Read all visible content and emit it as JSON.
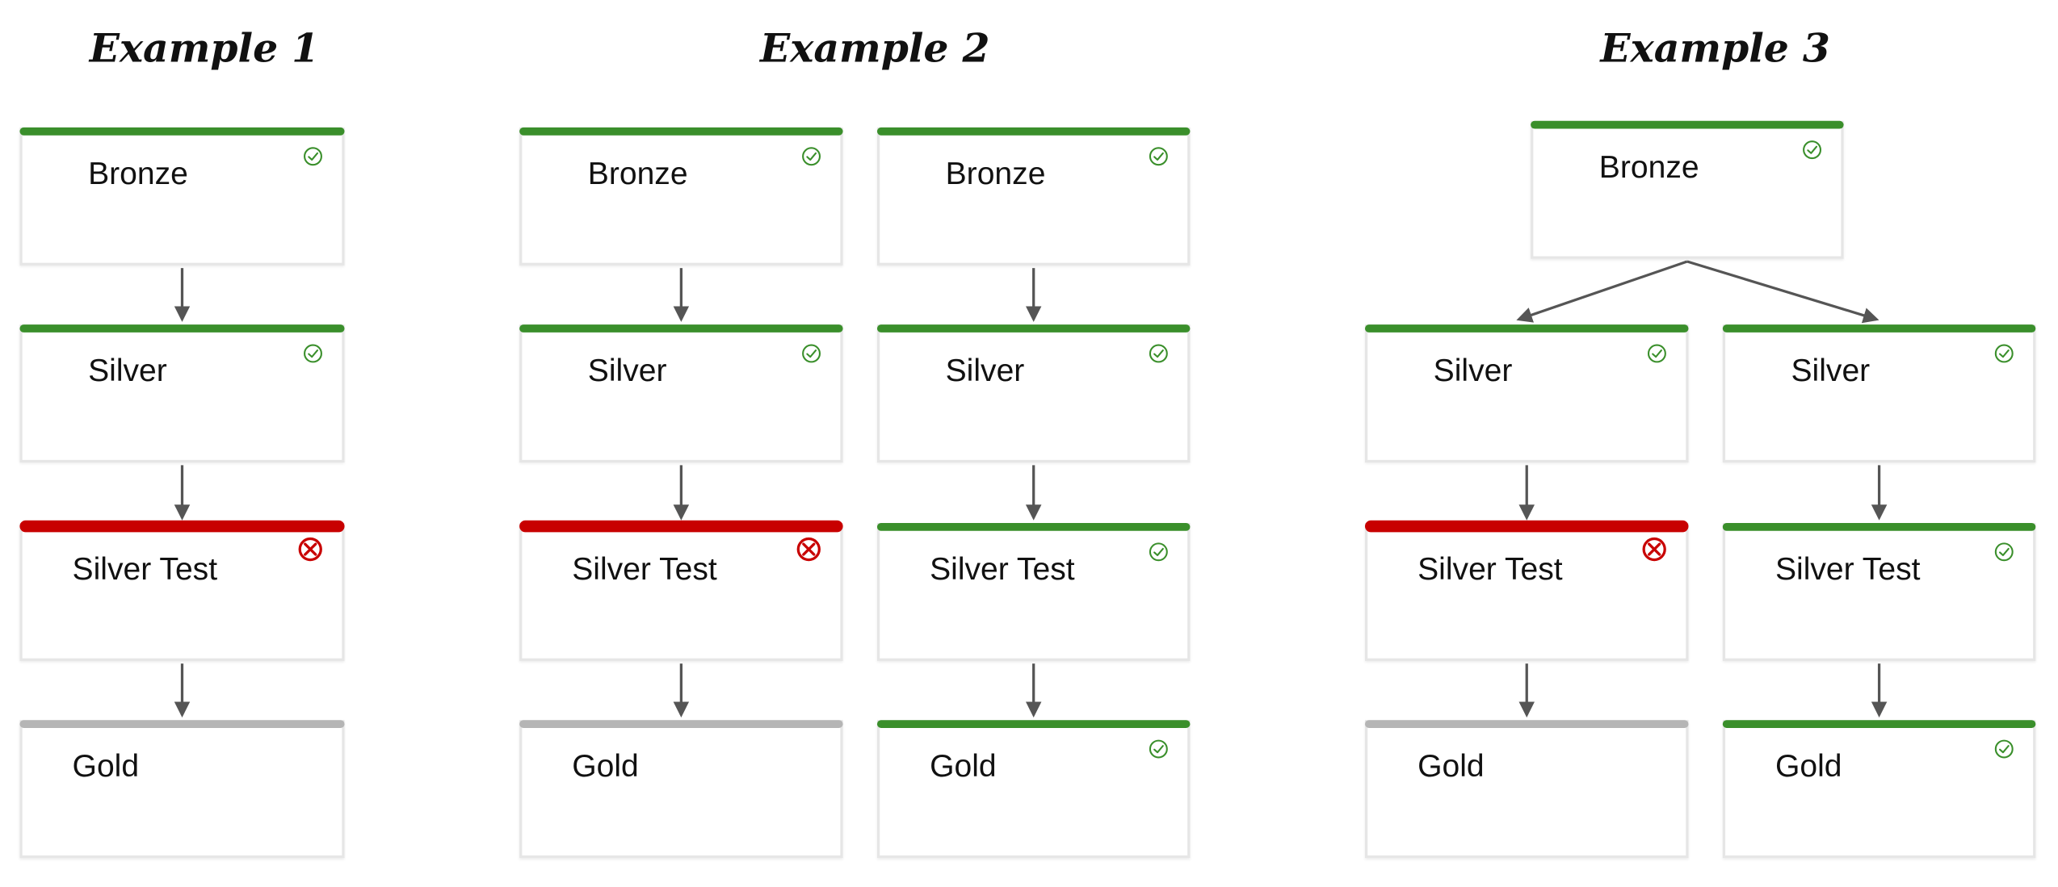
{
  "colors": {
    "success": "#3a8f2b",
    "failed": "#c80000",
    "skipped": "#b5b5b5",
    "connector": "#555555"
  },
  "examples": [
    {
      "title": "Example 1",
      "nodes": [
        {
          "id": "e1-bronze",
          "label": "Bronze",
          "status": "success"
        },
        {
          "id": "e1-silver",
          "label": "Silver",
          "status": "success"
        },
        {
          "id": "e1-silver-test",
          "label": "Silver Test",
          "status": "failed"
        },
        {
          "id": "e1-gold",
          "label": "Gold",
          "status": "skipped"
        }
      ],
      "edges": [
        [
          "e1-bronze",
          "e1-silver"
        ],
        [
          "e1-silver",
          "e1-silver-test"
        ],
        [
          "e1-silver-test",
          "e1-gold"
        ]
      ]
    },
    {
      "title": "Example 2",
      "nodes": [
        {
          "id": "e2a-bronze",
          "label": "Bronze",
          "status": "success"
        },
        {
          "id": "e2a-silver",
          "label": "Silver",
          "status": "success"
        },
        {
          "id": "e2a-silver-test",
          "label": "Silver Test",
          "status": "failed"
        },
        {
          "id": "e2a-gold",
          "label": "Gold",
          "status": "skipped"
        },
        {
          "id": "e2b-bronze",
          "label": "Bronze",
          "status": "success"
        },
        {
          "id": "e2b-silver",
          "label": "Silver",
          "status": "success"
        },
        {
          "id": "e2b-silver-test",
          "label": "Silver Test",
          "status": "success"
        },
        {
          "id": "e2b-gold",
          "label": "Gold",
          "status": "success"
        }
      ],
      "edges": [
        [
          "e2a-bronze",
          "e2a-silver"
        ],
        [
          "e2a-silver",
          "e2a-silver-test"
        ],
        [
          "e2a-silver-test",
          "e2a-gold"
        ],
        [
          "e2b-bronze",
          "e2b-silver"
        ],
        [
          "e2b-silver",
          "e2b-silver-test"
        ],
        [
          "e2b-silver-test",
          "e2b-gold"
        ]
      ]
    },
    {
      "title": "Example 3",
      "nodes": [
        {
          "id": "e3-bronze",
          "label": "Bronze",
          "status": "success"
        },
        {
          "id": "e3a-silver",
          "label": "Silver",
          "status": "success"
        },
        {
          "id": "e3a-silver-test",
          "label": "Silver Test",
          "status": "failed"
        },
        {
          "id": "e3a-gold",
          "label": "Gold",
          "status": "skipped"
        },
        {
          "id": "e3b-silver",
          "label": "Silver",
          "status": "success"
        },
        {
          "id": "e3b-silver-test",
          "label": "Silver Test",
          "status": "success"
        },
        {
          "id": "e3b-gold",
          "label": "Gold",
          "status": "success"
        }
      ],
      "edges": [
        [
          "e3-bronze",
          "e3a-silver"
        ],
        [
          "e3-bronze",
          "e3b-silver"
        ],
        [
          "e3a-silver",
          "e3a-silver-test"
        ],
        [
          "e3a-silver-test",
          "e3a-gold"
        ],
        [
          "e3b-silver",
          "e3b-silver-test"
        ],
        [
          "e3b-silver-test",
          "e3b-gold"
        ]
      ]
    }
  ]
}
